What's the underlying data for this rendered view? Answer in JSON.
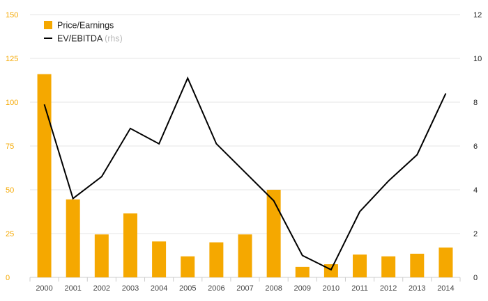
{
  "chart_data": {
    "type": "bar",
    "categories": [
      "2000",
      "2001",
      "2002",
      "2003",
      "2004",
      "2005",
      "2006",
      "2007",
      "2008",
      "2009",
      "2010",
      "2011",
      "2012",
      "2013",
      "2014"
    ],
    "series": [
      {
        "name": "Price/Earnings",
        "type": "bar",
        "axis": "left",
        "values": [
          116,
          44.5,
          24.5,
          36.5,
          20.5,
          12,
          20,
          24.5,
          50,
          6,
          7.5,
          13,
          12,
          13.5,
          17
        ]
      },
      {
        "name": "EV/EBITDA",
        "name_suffix": "(rhs)",
        "type": "line",
        "axis": "right",
        "values": [
          7.9,
          3.6,
          4.6,
          6.8,
          6.1,
          9.1,
          6.1,
          4.8,
          3.5,
          1.0,
          0.35,
          3.0,
          4.4,
          5.6,
          8.4
        ]
      }
    ],
    "left_axis": {
      "ylim": [
        0,
        150
      ],
      "ticks": [
        "0",
        "25",
        "50",
        "75",
        "100",
        "125",
        "150"
      ]
    },
    "right_axis": {
      "ylim": [
        0,
        12
      ],
      "ticks": [
        "0",
        "2",
        "4",
        "6",
        "8",
        "10",
        "12"
      ]
    },
    "legend_position": "top-left",
    "grid": true,
    "colors": {
      "bar": "#f5a800",
      "line": "#000000",
      "left_axis_text": "#f5a800",
      "right_axis_text": "#222222"
    }
  }
}
